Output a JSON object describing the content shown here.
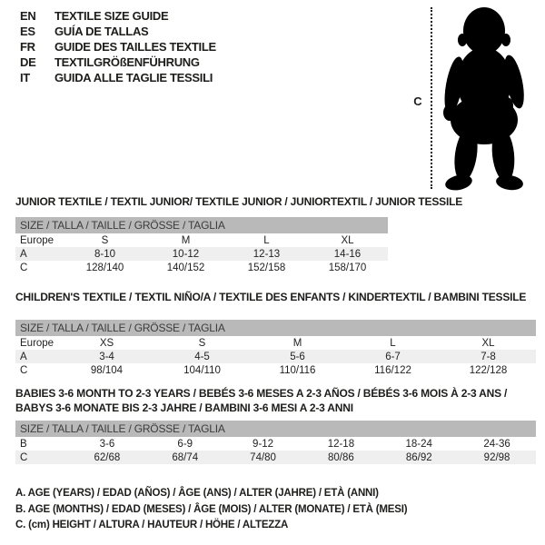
{
  "colors": {
    "header_bar": "#b9b9b9",
    "row_stripe": "#efefef",
    "text": "#1d1d1b",
    "silhouette": "#000000"
  },
  "language_guide": {
    "items": [
      {
        "code": "EN",
        "label": "TEXTILE SIZE GUIDE"
      },
      {
        "code": "ES",
        "label": "GUÍA DE TALLAS"
      },
      {
        "code": "FR",
        "label": "GUIDE DES TAILLES TEXTILE"
      },
      {
        "code": "DE",
        "label": "TEXTILGRÖßENFÜHRUNG"
      },
      {
        "code": "IT",
        "label": "GUIDA ALLE TAGLIE TESSILI"
      }
    ]
  },
  "figure": {
    "label": "C",
    "description": "standing baby silhouette with dotted height line"
  },
  "sections": [
    {
      "title_lines": [
        "JUNIOR TEXTILE / TEXTIL JUNIOR/ TEXTILE JUNIOR / JUNIORTEXTIL / JUNIOR TESSILE"
      ],
      "table": {
        "header": "SIZE / TALLA / TAILLE / GRÖSSE / TAGLIA",
        "rows": [
          {
            "label": "Europe",
            "values": [
              "S",
              "M",
              "L",
              "XL"
            ],
            "striped": false
          },
          {
            "label": "A",
            "values": [
              "8-10",
              "10-12",
              "12-13",
              "14-16"
            ],
            "striped": true
          },
          {
            "label": "C",
            "values": [
              "128/140",
              "140/152",
              "152/158",
              "158/170"
            ],
            "striped": false
          }
        ]
      }
    },
    {
      "title_lines": [
        "CHILDREN'S TEXTILE / TEXTIL NIÑO/A / TEXTILE DES ENFANTS / KINDERTEXTIL / BAMBINI TESSILE"
      ],
      "table": {
        "header": "SIZE / TALLA / TAILLE / GRÖSSE / TAGLIA",
        "rows": [
          {
            "label": "Europe",
            "values": [
              "XS",
              "S",
              "M",
              "L",
              "XL"
            ],
            "striped": false
          },
          {
            "label": "A",
            "values": [
              "3-4",
              "4-5",
              "5-6",
              "6-7",
              "7-8"
            ],
            "striped": true
          },
          {
            "label": "C",
            "values": [
              "98/104",
              "104/110",
              "110/116",
              "116/122",
              "122/128"
            ],
            "striped": false
          }
        ]
      }
    },
    {
      "title_lines": [
        "BABIES 3-6 MONTH TO 2-3 YEARS / BEBÉS 3-6 MESES A 2-3 AÑOS / BÉBÉS 3-6 MOIS À 2-3 ANS /",
        "BABYS 3-6 MONATE BIS 2-3 JAHRE / BAMBINI 3-6 MESI A 2-3 ANNI"
      ],
      "table": {
        "header": "SIZE / TALLA / TAILLE / GRÖSSE / TAGLIA",
        "rows": [
          {
            "label": "B",
            "values": [
              "3-6",
              "6-9",
              "9-12",
              "12-18",
              "18-24",
              "24-36"
            ],
            "striped": false
          },
          {
            "label": "C",
            "values": [
              "62/68",
              "68/74",
              "74/80",
              "80/86",
              "86/92",
              "92/98"
            ],
            "striped": true
          }
        ]
      }
    }
  ],
  "footnotes": [
    "A. AGE (YEARS) / EDAD (AÑOS) / ÂGE (ANS) / ALTER (JAHRE) / ETÀ (ANNI)",
    "B. AGE (MONTHS) / EDAD (MESES) / ÂGE (MOIS) / ALTER (MONATE) / ETÀ (MESI)",
    "C. (cm) HEIGHT / ALTURA / HAUTEUR / HÖHE / ALTEZZA"
  ]
}
